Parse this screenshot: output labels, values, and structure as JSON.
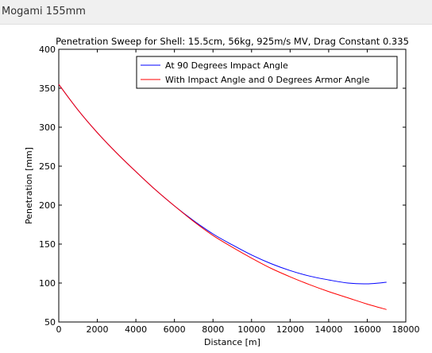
{
  "header": {
    "title": "Mogami 155mm"
  },
  "chart_data": {
    "type": "line",
    "title": "Penetration Sweep for Shell: 15.5cm, 56kg, 925m/s MV, Drag Constant 0.335",
    "xlabel": "Distance [m]",
    "ylabel": "Penetration [mm]",
    "xlim": [
      0,
      18000
    ],
    "ylim": [
      50,
      400
    ],
    "xticks": [
      0,
      2000,
      4000,
      6000,
      8000,
      10000,
      12000,
      14000,
      16000,
      18000
    ],
    "yticks": [
      50,
      100,
      150,
      200,
      250,
      300,
      350,
      400
    ],
    "grid": false,
    "legend_position": "top-right",
    "series": [
      {
        "name": "At 90 Degrees Impact Angle",
        "color": "#0000ff",
        "x": [
          0,
          1000,
          2000,
          3000,
          4000,
          5000,
          6000,
          7000,
          8000,
          9000,
          10000,
          11000,
          12000,
          13000,
          14000,
          15000,
          16000,
          17000
        ],
        "y": [
          355,
          322,
          293,
          267,
          243,
          220,
          199,
          180,
          163,
          149,
          136,
          125,
          116,
          109,
          104,
          100,
          99,
          101
        ]
      },
      {
        "name": "With Impact Angle and 0 Degrees Armor Angle",
        "color": "#ff0000",
        "x": [
          0,
          1000,
          2000,
          3000,
          4000,
          5000,
          6000,
          7000,
          8000,
          9000,
          10000,
          11000,
          12000,
          13000,
          14000,
          15000,
          16000,
          17000
        ],
        "y": [
          355,
          322,
          293,
          267,
          243,
          220,
          199,
          179,
          161,
          146,
          132,
          119,
          108,
          98,
          89,
          81,
          73,
          66
        ]
      }
    ]
  }
}
